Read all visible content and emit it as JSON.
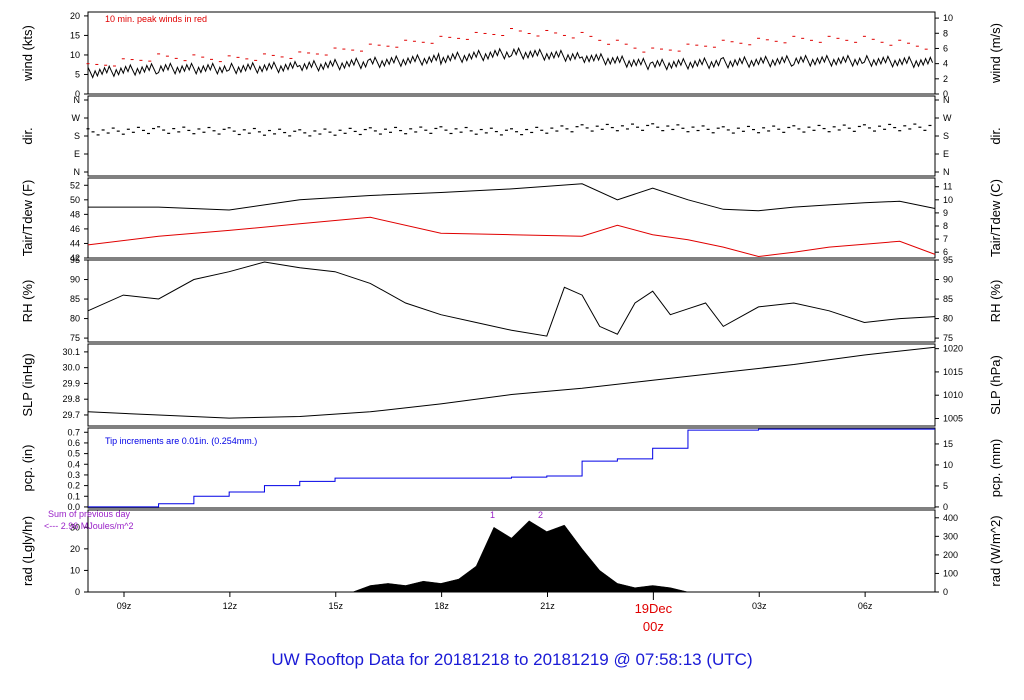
{
  "title": "UW Rooftop Data for 20181218  to  20181219 @ 07:58:13  (UTC)",
  "colors": {
    "black": "#000000",
    "red": "#e00000",
    "blue": "#0000e6",
    "purple": "#9a22c8",
    "title": "#1a1ad6"
  },
  "chart_data": [
    {
      "id": "wind",
      "type": "line",
      "ylabel_left": "wind (kts)",
      "ylabel_right": "wind (m/s)",
      "left_ticks": [
        0,
        5,
        10,
        15,
        20
      ],
      "right_ticks": [
        0,
        2,
        4,
        6,
        8,
        10
      ],
      "ylim": [
        0,
        21
      ],
      "annotation": "10 min. peak winds in red",
      "series": [
        {
          "key": "mean",
          "color": "#000000",
          "x": [
            0,
            2,
            4,
            6,
            8,
            10,
            12,
            14,
            16,
            18,
            20,
            22,
            24
          ],
          "values": [
            5.5,
            6.5,
            6.5,
            7,
            8,
            9,
            10.5,
            9.5,
            7.5,
            8,
            8.5,
            8.5,
            8
          ]
        },
        {
          "key": "peak",
          "color": "#e00000",
          "x": [
            0,
            2,
            4,
            6,
            8,
            10,
            12,
            14,
            16,
            18,
            20,
            22,
            24
          ],
          "values": [
            7,
            9.5,
            9,
            10,
            12,
            14,
            16,
            15,
            11,
            13,
            14,
            14,
            12
          ]
        }
      ]
    },
    {
      "id": "dir",
      "type": "scatter",
      "ylabel_left": "dir.",
      "ylabel_right": "dir.",
      "ticks": [
        "N",
        "W",
        "S",
        "E",
        "N"
      ],
      "series": [
        {
          "color": "#000000",
          "x": [
            0,
            2,
            4,
            6,
            8,
            10,
            12,
            14,
            16,
            18,
            20,
            22,
            24
          ],
          "values": [
            200,
            210,
            205,
            195,
            205,
            210,
            200,
            220,
            225,
            210,
            215,
            220,
            225
          ]
        }
      ]
    },
    {
      "id": "temp",
      "type": "line",
      "ylabel_left": "Tair/Tdew (F)",
      "ylabel_right": "Tair/Tdew (C)",
      "left_ticks": [
        42,
        44,
        46,
        48,
        50,
        52
      ],
      "right_ticks": [
        6,
        7,
        8,
        9,
        10,
        11
      ],
      "ylim": [
        42,
        53
      ],
      "series": [
        {
          "key": "Tair",
          "color": "#000000",
          "x": [
            0,
            2,
            4,
            6,
            8,
            10,
            12,
            14,
            15,
            16,
            17,
            18,
            19,
            20,
            21,
            22,
            23,
            24
          ],
          "values": [
            49,
            49,
            48.6,
            50,
            50.6,
            51,
            51.5,
            52.2,
            50,
            51.6,
            50,
            48.7,
            48.5,
            49,
            49.3,
            49.6,
            49.8,
            48.8
          ]
        },
        {
          "key": "Tdew",
          "color": "#e00000",
          "x": [
            0,
            2,
            4,
            6,
            8,
            10,
            12,
            14,
            15,
            16,
            17,
            18,
            19,
            20,
            21,
            22,
            23,
            24
          ],
          "values": [
            43.8,
            45,
            45.8,
            46.7,
            47.6,
            45.4,
            45.2,
            45,
            46.5,
            45.2,
            44.5,
            43.5,
            42.2,
            42.8,
            43.5,
            43.9,
            44.3,
            42.5
          ]
        }
      ]
    },
    {
      "id": "rh",
      "type": "line",
      "ylabel_left": "RH (%)",
      "ylabel_right": "RH (%)",
      "ticks": [
        75,
        80,
        85,
        90,
        95
      ],
      "ylim": [
        74,
        95
      ],
      "series": [
        {
          "color": "#000000",
          "x": [
            0,
            1,
            2,
            3,
            4,
            5,
            6,
            7,
            8,
            9,
            10,
            11,
            12,
            13,
            13.5,
            14,
            14.5,
            15,
            15.5,
            16,
            16.5,
            17,
            17.5,
            18,
            19,
            20,
            21,
            22,
            23,
            24
          ],
          "values": [
            82,
            86,
            85,
            90,
            92,
            94.5,
            93,
            92,
            89,
            84,
            81,
            79,
            77,
            75.5,
            88,
            86,
            78,
            76,
            84,
            87,
            81,
            82.5,
            84,
            78,
            83,
            84,
            82,
            79,
            80,
            80.5
          ]
        }
      ]
    },
    {
      "id": "slp",
      "type": "line",
      "ylabel_left": "SLP (inHg)",
      "ylabel_right": "SLP (hPa)",
      "left_ticks": [
        29.7,
        29.8,
        29.9,
        30.0,
        30.1
      ],
      "right_ticks": [
        1005,
        1010,
        1015,
        1020
      ],
      "ylim": [
        29.63,
        30.15
      ],
      "series": [
        {
          "color": "#000000",
          "x": [
            0,
            2,
            4,
            6,
            8,
            10,
            12,
            14,
            16,
            18,
            20,
            22,
            24
          ],
          "values": [
            29.72,
            29.7,
            29.68,
            29.69,
            29.72,
            29.77,
            29.83,
            29.87,
            29.92,
            29.97,
            30.02,
            30.08,
            30.13
          ]
        }
      ]
    },
    {
      "id": "pcp",
      "type": "line",
      "ylabel_left": "pcp. (in)",
      "ylabel_right": "pcp. (mm)",
      "left_ticks": [
        0.0,
        0.1,
        0.2,
        0.3,
        0.4,
        0.5,
        0.6,
        0.7
      ],
      "right_ticks": [
        0,
        5,
        10,
        15
      ],
      "ylim": [
        -0.01,
        0.74
      ],
      "annotation": "Tip increments are 0.01in. (0.254mm.)",
      "series": [
        {
          "color": "#0000e6",
          "x": [
            0,
            1,
            2,
            3,
            4,
            5,
            6,
            7,
            8,
            9,
            10,
            11,
            12,
            13,
            14,
            15,
            16,
            17,
            18,
            19,
            20,
            21,
            22,
            23,
            24
          ],
          "values": [
            0,
            0,
            0.03,
            0.1,
            0.14,
            0.2,
            0.24,
            0.27,
            0.27,
            0.27,
            0.27,
            0.27,
            0.28,
            0.29,
            0.43,
            0.45,
            0.55,
            0.72,
            0.72,
            0.73,
            0.73,
            0.73,
            0.73,
            0.73,
            0.73
          ]
        }
      ]
    },
    {
      "id": "rad",
      "type": "area",
      "ylabel_left": "rad (Lgly/hr)",
      "ylabel_right": "rad (W/m^2)",
      "left_ticks": [
        0,
        10,
        20,
        30
      ],
      "right_ticks": [
        0,
        100,
        200,
        300,
        400
      ],
      "ylim": [
        0,
        38
      ],
      "annotation": "Sum of previous day",
      "annotation2": "<--- 2.96 MJoules/m^2",
      "markers": [
        "1",
        "2"
      ],
      "series": [
        {
          "color": "#000000",
          "x": [
            0,
            7,
            7.5,
            8,
            8.5,
            9,
            9.5,
            10,
            10.5,
            11,
            11.5,
            12,
            12.5,
            13,
            13.5,
            14,
            14.5,
            15,
            15.5,
            16,
            16.5,
            17,
            24
          ],
          "values": [
            0,
            0,
            0,
            3,
            4,
            3,
            5,
            4,
            6,
            12,
            30,
            25,
            33,
            28,
            31,
            20,
            10,
            4,
            2,
            3,
            2,
            0,
            0
          ]
        }
      ]
    }
  ],
  "x_axis": {
    "tick_labels": [
      "09z",
      "12z",
      "15z",
      "18z",
      "21z",
      "03z",
      "06z"
    ],
    "date_label": "19Dec",
    "date_sublabel": "00z"
  }
}
